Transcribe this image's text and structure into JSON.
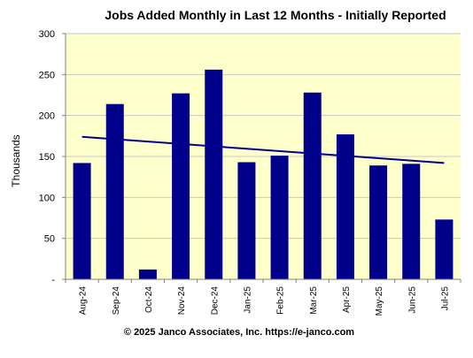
{
  "chart_data": {
    "type": "bar",
    "title": "Jobs Added Monthly in Last 12 Months - Initially Reported",
    "ylabel": "Thousands",
    "xlabel": "",
    "categories": [
      "Aug-24",
      "Sep-24",
      "Oct-24",
      "Nov-24",
      "Dec-24",
      "Jan-25",
      "Feb-25",
      "Mar-25",
      "Apr-25",
      "May-25",
      "Jun-25",
      "Jul-25"
    ],
    "series": [
      {
        "values": [
          142,
          214,
          12,
          227,
          256,
          143,
          151,
          228,
          177,
          139,
          141,
          73
        ]
      }
    ],
    "trendline": {
      "start": 174,
      "end": 142
    },
    "ylim": [
      0,
      300
    ],
    "yticks": [
      0,
      50,
      100,
      150,
      200,
      250,
      300
    ],
    "ytick_labels": [
      "-",
      "50",
      "100",
      "150",
      "200",
      "250",
      "300"
    ],
    "grid": true,
    "legend": "none",
    "colors": {
      "bar": "#00008B",
      "trend": "#00008B",
      "plot_background": "#FFFFCC",
      "grid": "#C8C8C8"
    }
  },
  "footer": "© 2025 Janco Associates, Inc. https://e-janco.com"
}
